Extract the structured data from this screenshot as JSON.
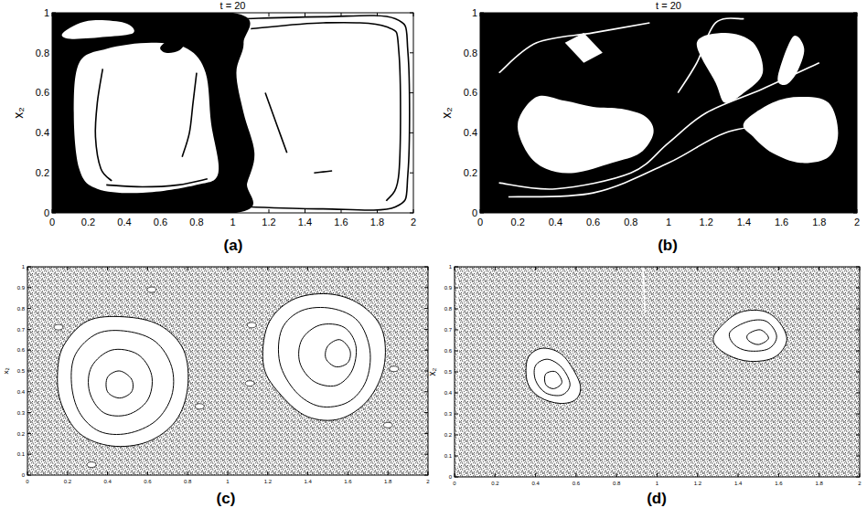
{
  "chart_data": [
    {
      "type": "area",
      "title": "t = 20",
      "caption": "(a)",
      "y_label": "x₂",
      "xlim": [
        0,
        2
      ],
      "ylim": [
        0,
        1
      ],
      "xticks": [
        0,
        0.2,
        0.4,
        0.6,
        0.8,
        1,
        1.2,
        1.4,
        1.6,
        1.8,
        2
      ],
      "yticks": [
        0,
        0.2,
        0.4,
        0.6,
        0.8,
        1
      ],
      "series": [
        {
          "type": "area",
          "color": "#000000",
          "x": [
            0,
            1.02,
            1.08,
            1.12,
            1.06,
            1.02,
            1.06,
            1.0,
            0
          ],
          "y": [
            0,
            0,
            0.15,
            0.3,
            0.5,
            0.7,
            0.85,
            1,
            1
          ]
        },
        {
          "type": "area",
          "color": "#ffffff",
          "x": [
            0.15,
            0.12,
            0.15,
            0.3,
            0.55,
            0.75,
            0.85,
            0.88,
            0.92,
            0.8,
            0.5,
            0.25
          ],
          "y": [
            0.22,
            0.5,
            0.75,
            0.82,
            0.85,
            0.82,
            0.7,
            0.45,
            0.2,
            0.14,
            0.1,
            0.12
          ]
        },
        {
          "type": "area",
          "color": "#ffffff",
          "x": [
            0.06,
            0.2,
            0.4,
            0.45,
            0.3,
            0.1
          ],
          "y": [
            0.9,
            0.96,
            0.95,
            0.9,
            0.88,
            0.87
          ]
        },
        {
          "type": "area",
          "color": "#000000",
          "x": [
            0.6,
            0.68,
            0.74,
            0.7,
            0.63
          ],
          "y": [
            0.83,
            0.88,
            0.86,
            0.81,
            0.8
          ]
        },
        {
          "type": "line",
          "color": "#000000",
          "x": [
            0.28,
            0.25,
            0.24,
            0.27,
            0.33
          ],
          "y": [
            0.72,
            0.55,
            0.38,
            0.22,
            0.16
          ]
        },
        {
          "type": "line",
          "color": "#000000",
          "x": [
            0.3,
            0.5,
            0.7,
            0.86
          ],
          "y": [
            0.14,
            0.13,
            0.14,
            0.17
          ]
        },
        {
          "type": "line",
          "color": "#000000",
          "x": [
            0.72,
            0.76,
            0.78,
            0.8
          ],
          "y": [
            0.28,
            0.4,
            0.55,
            0.7
          ]
        },
        {
          "type": "line",
          "color": "#000000",
          "x": [
            1.06,
            1.5,
            1.9,
            1.97,
            1.97,
            1.9,
            1.5,
            1.1
          ],
          "y": [
            0.97,
            0.98,
            0.97,
            0.8,
            0.2,
            0.03,
            0.02,
            0.03
          ]
        },
        {
          "type": "line",
          "color": "#000000",
          "x": [
            1.1,
            1.5,
            1.85,
            1.92,
            1.92,
            1.85
          ],
          "y": [
            0.92,
            0.95,
            0.93,
            0.8,
            0.2,
            0.06
          ]
        },
        {
          "type": "line",
          "color": "#000000",
          "x": [
            1.18,
            1.24,
            1.3
          ],
          "y": [
            0.6,
            0.45,
            0.3
          ]
        },
        {
          "type": "line",
          "color": "#000000",
          "x": [
            1.45,
            1.5,
            1.55
          ],
          "y": [
            0.2,
            0.205,
            0.21
          ]
        }
      ]
    },
    {
      "type": "area",
      "title": "t = 20",
      "caption": "(b)",
      "y_label": "x₂",
      "xlim": [
        0,
        2
      ],
      "ylim": [
        0,
        1
      ],
      "xticks": [
        0,
        0.2,
        0.4,
        0.6,
        0.8,
        1,
        1.2,
        1.4,
        1.6,
        1.8,
        2
      ],
      "yticks": [
        0,
        0.2,
        0.4,
        0.6,
        0.8,
        1
      ],
      "series": [
        {
          "type": "area",
          "color": "#000000",
          "x": [
            0,
            2,
            2,
            0
          ],
          "y": [
            0,
            0,
            1,
            1
          ]
        },
        {
          "type": "area",
          "color": "#ffffff",
          "x": [
            0.2,
            0.3,
            0.45,
            0.6,
            0.75,
            0.88,
            0.92,
            0.85,
            0.7,
            0.5,
            0.35,
            0.25
          ],
          "y": [
            0.45,
            0.58,
            0.56,
            0.53,
            0.52,
            0.48,
            0.4,
            0.3,
            0.25,
            0.2,
            0.22,
            0.3
          ]
        },
        {
          "type": "area",
          "color": "#ffffff",
          "x": [
            1.4,
            1.55,
            1.7,
            1.85,
            1.9,
            1.85,
            1.7,
            1.55,
            1.45
          ],
          "y": [
            0.45,
            0.55,
            0.58,
            0.55,
            0.4,
            0.28,
            0.25,
            0.3,
            0.38
          ]
        },
        {
          "type": "area",
          "color": "#ffffff",
          "x": [
            1.15,
            1.3,
            1.45,
            1.5,
            1.4,
            1.3,
            1.25
          ],
          "y": [
            0.85,
            0.9,
            0.85,
            0.7,
            0.6,
            0.55,
            0.65
          ]
        },
        {
          "type": "area",
          "color": "#ffffff",
          "x": [
            1.58,
            1.66,
            1.72,
            1.68,
            1.62
          ],
          "y": [
            0.68,
            0.88,
            0.82,
            0.7,
            0.64
          ]
        },
        {
          "type": "area",
          "color": "#ffffff",
          "x": [
            0.45,
            0.55,
            0.65,
            0.55
          ],
          "y": [
            0.85,
            0.9,
            0.8,
            0.75
          ]
        },
        {
          "type": "line",
          "color": "#ffffff",
          "x": [
            0.1,
            0.4,
            0.8,
            1.0,
            1.2,
            1.5,
            1.8
          ],
          "y": [
            0.15,
            0.12,
            0.2,
            0.35,
            0.5,
            0.62,
            0.75
          ]
        },
        {
          "type": "line",
          "color": "#ffffff",
          "x": [
            0.15,
            0.6,
            1.0,
            1.3,
            1.6
          ],
          "y": [
            0.08,
            0.1,
            0.25,
            0.4,
            0.45
          ]
        },
        {
          "type": "line",
          "color": "#ffffff",
          "x": [
            0.1,
            0.3,
            0.6,
            0.9
          ],
          "y": [
            0.7,
            0.85,
            0.9,
            0.95
          ]
        },
        {
          "type": "line",
          "color": "#ffffff",
          "x": [
            1.05,
            1.15,
            1.25,
            1.4
          ],
          "y": [
            0.6,
            0.75,
            0.95,
            0.97
          ]
        }
      ]
    },
    {
      "type": "scatter",
      "caption": "(c)",
      "y_label": "x₂",
      "xlim": [
        0,
        2
      ],
      "ylim": [
        0,
        1
      ],
      "xticks": [
        0,
        0.2,
        0.4,
        0.6,
        0.8,
        1,
        1.2,
        1.4,
        1.6,
        1.8,
        2
      ],
      "yticks": [
        0,
        0.1,
        0.2,
        0.3,
        0.4,
        0.5,
        0.6,
        0.7,
        0.8,
        0.9,
        1
      ],
      "series": [
        {
          "type": "area",
          "marker": "dots",
          "color": "#222222",
          "x": [
            0,
            2,
            2,
            0
          ],
          "y": [
            0,
            0,
            1,
            1
          ]
        },
        {
          "type": "area",
          "color": "#ffffff",
          "line_style": "solid",
          "x": [
            0.18,
            0.3,
            0.48,
            0.66,
            0.78,
            0.8,
            0.74,
            0.6,
            0.42,
            0.26,
            0.17,
            0.15
          ],
          "y": [
            0.62,
            0.74,
            0.76,
            0.72,
            0.6,
            0.42,
            0.26,
            0.16,
            0.14,
            0.2,
            0.34,
            0.48
          ]
        },
        {
          "type": "loop",
          "color": "#000000",
          "x": [
            0.24,
            0.35,
            0.5,
            0.64,
            0.72,
            0.72,
            0.64,
            0.5,
            0.36,
            0.26,
            0.22
          ],
          "y": [
            0.58,
            0.68,
            0.69,
            0.64,
            0.52,
            0.38,
            0.26,
            0.2,
            0.21,
            0.3,
            0.44
          ]
        },
        {
          "type": "loop",
          "color": "#000000",
          "x": [
            0.32,
            0.42,
            0.55,
            0.62,
            0.6,
            0.5,
            0.38,
            0.31
          ],
          "y": [
            0.52,
            0.6,
            0.58,
            0.48,
            0.36,
            0.29,
            0.3,
            0.4
          ]
        },
        {
          "type": "loop",
          "color": "#000000",
          "x": [
            0.4,
            0.46,
            0.52,
            0.52,
            0.46,
            0.4
          ],
          "y": [
            0.47,
            0.5,
            0.46,
            0.4,
            0.37,
            0.4
          ]
        },
        {
          "type": "area",
          "color": "#ffffff",
          "line_style": "solid",
          "x": [
            1.2,
            1.32,
            1.5,
            1.66,
            1.77,
            1.78,
            1.7,
            1.56,
            1.4,
            1.27,
            1.18
          ],
          "y": [
            0.72,
            0.84,
            0.87,
            0.82,
            0.7,
            0.52,
            0.36,
            0.27,
            0.28,
            0.38,
            0.52
          ]
        },
        {
          "type": "loop",
          "color": "#000000",
          "x": [
            1.27,
            1.37,
            1.52,
            1.65,
            1.71,
            1.69,
            1.6,
            1.46,
            1.34,
            1.26
          ],
          "y": [
            0.7,
            0.79,
            0.8,
            0.74,
            0.6,
            0.45,
            0.35,
            0.33,
            0.4,
            0.54
          ]
        },
        {
          "type": "loop",
          "color": "#000000",
          "x": [
            1.37,
            1.46,
            1.58,
            1.64,
            1.62,
            1.54,
            1.43,
            1.36
          ],
          "y": [
            0.65,
            0.72,
            0.71,
            0.62,
            0.5,
            0.43,
            0.45,
            0.54
          ]
        },
        {
          "type": "loop",
          "color": "#000000",
          "x": [
            1.5,
            1.56,
            1.61,
            1.6,
            1.54,
            1.49
          ],
          "y": [
            0.62,
            0.65,
            0.6,
            0.54,
            0.52,
            0.56
          ]
        },
        {
          "type": "scatter",
          "marker": "ellipse",
          "color": "#ffffff",
          "x": [
            0.155,
            0.62,
            0.86,
            0.32,
            1.12,
            1.11,
            1.83,
            1.8
          ],
          "y": [
            0.71,
            0.89,
            0.33,
            0.05,
            0.72,
            0.44,
            0.51,
            0.24
          ]
        }
      ]
    },
    {
      "type": "scatter",
      "caption": "(d)",
      "y_label": "x₂",
      "xlim": [
        0,
        2
      ],
      "ylim": [
        0,
        1
      ],
      "xticks": [
        0,
        0.2,
        0.4,
        0.6,
        0.8,
        1,
        1.2,
        1.4,
        1.6,
        1.8,
        2
      ],
      "yticks": [
        0,
        0.1,
        0.2,
        0.3,
        0.4,
        0.5,
        0.6,
        0.7,
        0.8,
        0.9,
        1
      ],
      "series": [
        {
          "type": "area",
          "marker": "dots",
          "color": "#222222",
          "x": [
            0,
            2,
            2,
            0
          ],
          "y": [
            0,
            0,
            1,
            1
          ]
        },
        {
          "type": "line",
          "color": "#ffffff",
          "x": [
            0.93,
            0.935,
            0.94
          ],
          "y": [
            1,
            0.9,
            0.78
          ]
        },
        {
          "type": "line",
          "color": "#ffffff",
          "x": [
            0.015,
            0.02,
            0.015
          ],
          "y": [
            0.95,
            0.5,
            0.05
          ]
        },
        {
          "type": "area",
          "color": "#ffffff",
          "line_style": "solid",
          "x": [
            0.36,
            0.42,
            0.5,
            0.56,
            0.62,
            0.6,
            0.52,
            0.42,
            0.36
          ],
          "y": [
            0.56,
            0.61,
            0.6,
            0.55,
            0.44,
            0.37,
            0.35,
            0.38,
            0.45
          ]
        },
        {
          "type": "loop",
          "color": "#000000",
          "x": [
            0.4,
            0.46,
            0.53,
            0.57,
            0.53,
            0.45,
            0.4
          ],
          "y": [
            0.53,
            0.56,
            0.52,
            0.44,
            0.39,
            0.4,
            0.46
          ]
        },
        {
          "type": "loop",
          "color": "#000000",
          "x": [
            0.45,
            0.5,
            0.53,
            0.49,
            0.45
          ],
          "y": [
            0.49,
            0.5,
            0.45,
            0.42,
            0.44
          ]
        },
        {
          "type": "area",
          "color": "#ffffff",
          "line_style": "solid",
          "x": [
            1.3,
            1.4,
            1.52,
            1.6,
            1.64,
            1.58,
            1.46,
            1.35,
            1.28
          ],
          "y": [
            0.7,
            0.78,
            0.79,
            0.74,
            0.65,
            0.57,
            0.55,
            0.58,
            0.64
          ]
        },
        {
          "type": "loop",
          "color": "#000000",
          "x": [
            1.36,
            1.45,
            1.54,
            1.59,
            1.55,
            1.45,
            1.38
          ],
          "y": [
            0.69,
            0.74,
            0.74,
            0.67,
            0.61,
            0.6,
            0.63
          ]
        },
        {
          "type": "loop",
          "color": "#000000",
          "x": [
            1.45,
            1.51,
            1.55,
            1.5,
            1.45
          ],
          "y": [
            0.68,
            0.7,
            0.66,
            0.63,
            0.65
          ]
        }
      ]
    }
  ]
}
